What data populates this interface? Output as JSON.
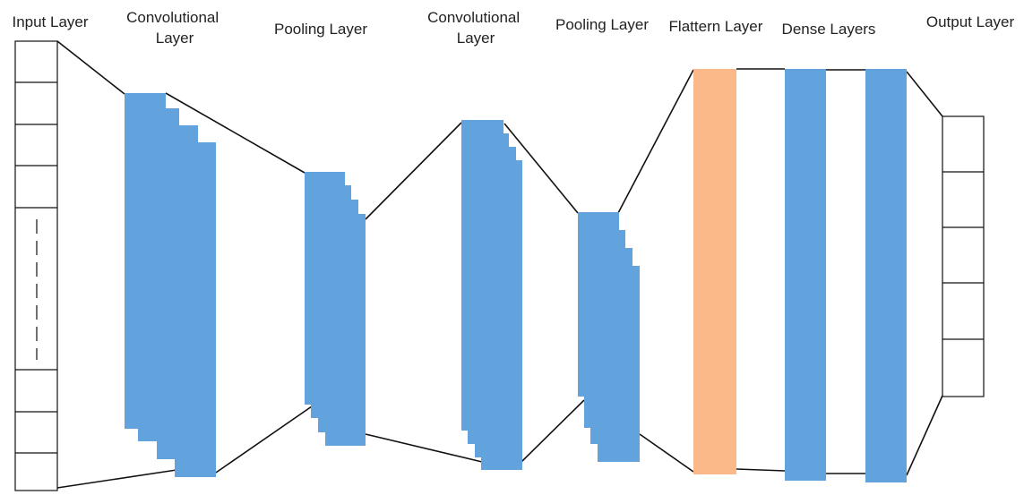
{
  "layers": [
    {
      "key": "input",
      "label": [
        "Input Layer"
      ]
    },
    {
      "key": "conv1",
      "label": [
        "Convolutional",
        "Layer"
      ]
    },
    {
      "key": "pool1",
      "label": [
        "Pooling Layer"
      ]
    },
    {
      "key": "conv2",
      "label": [
        "Convolutional",
        "Layer"
      ]
    },
    {
      "key": "pool2",
      "label": [
        "Pooling Layer"
      ]
    },
    {
      "key": "flatten",
      "label": [
        "Flattern Layer"
      ]
    },
    {
      "key": "dense",
      "label": [
        "Dense Layers"
      ]
    },
    {
      "key": "output",
      "label": [
        "Output Layer"
      ]
    }
  ],
  "colors": {
    "feature_map": "#62A3DD",
    "flatten": "#FBB98A",
    "dense": "#62A3DD",
    "outline": "#111111"
  }
}
